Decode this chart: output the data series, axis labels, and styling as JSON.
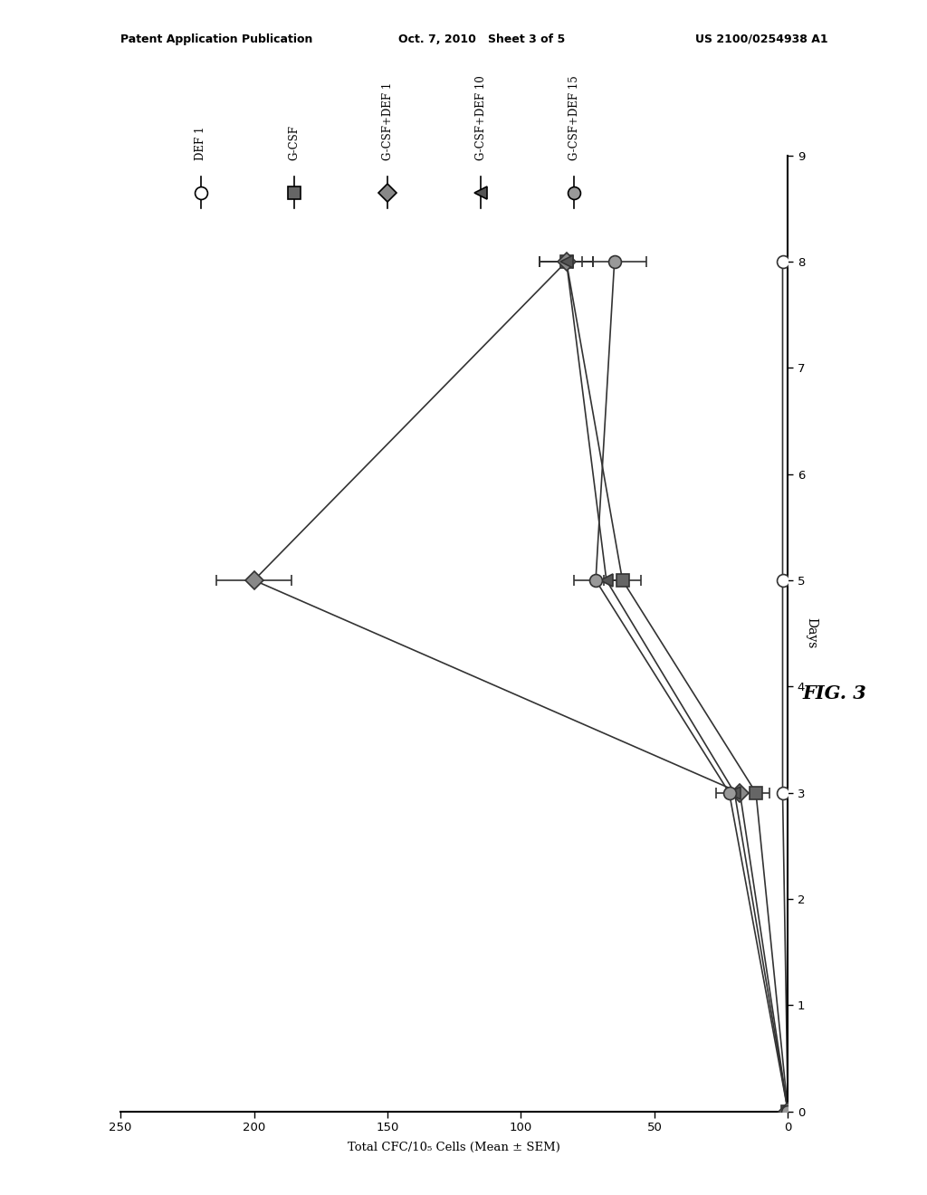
{
  "patent_header_left": "Patent Application Publication",
  "patent_header_mid": "Oct. 7, 2010   Sheet 3 of 5",
  "patent_header_right": "US 2100/0254938 A1",
  "fig_label": "FIG. 3",
  "ylabel_text": "Total CFC/10₅ Cells (Mean ± SEM)",
  "xlabel_text": "Days",
  "cfc_ticks": [
    0,
    50,
    100,
    150,
    200,
    250
  ],
  "days_ticks": [
    0,
    1,
    2,
    3,
    4,
    5,
    6,
    7,
    8,
    9
  ],
  "cfc_lim": [
    0,
    250
  ],
  "days_lim": [
    0,
    9
  ],
  "series": [
    {
      "name": "DEF 1",
      "marker": "o",
      "mfc": "white",
      "mec": "#333333",
      "color": "#333333",
      "days": [
        0,
        3,
        5,
        8
      ],
      "cfc": [
        0,
        2,
        2,
        2
      ],
      "err": [
        0,
        0,
        0,
        0
      ],
      "ms": 10
    },
    {
      "name": "G-CSF",
      "marker": "s",
      "mfc": "#666666",
      "mec": "#333333",
      "color": "#333333",
      "days": [
        0,
        3,
        5,
        8
      ],
      "cfc": [
        0,
        12,
        62,
        83
      ],
      "err": [
        0,
        5,
        7,
        10
      ],
      "ms": 10
    },
    {
      "name": "G-CSF+DEF 1",
      "marker": "D",
      "mfc": "#888888",
      "mec": "#333333",
      "color": "#333333",
      "days": [
        0,
        3,
        5,
        8
      ],
      "cfc": [
        0,
        18,
        200,
        83
      ],
      "err": [
        0,
        4,
        14,
        10
      ],
      "ms": 10
    },
    {
      "name": "G-CSF+DEF 10",
      "marker": "<",
      "mfc": "#555555",
      "mec": "#333333",
      "color": "#333333",
      "days": [
        0,
        3,
        5,
        8
      ],
      "cfc": [
        0,
        20,
        68,
        83
      ],
      "err": [
        0,
        3,
        5,
        10
      ],
      "ms": 10
    },
    {
      "name": "G-CSF+DEF 15",
      "marker": "o",
      "mfc": "#999999",
      "mec": "#333333",
      "color": "#333333",
      "days": [
        0,
        3,
        5,
        8
      ],
      "cfc": [
        0,
        22,
        72,
        65
      ],
      "err": [
        0,
        5,
        8,
        12
      ],
      "ms": 10
    }
  ],
  "bg_color": "white",
  "legend_markers": [
    "o",
    "s",
    "D",
    "<",
    "o"
  ],
  "legend_mfc": [
    "white",
    "#666666",
    "#888888",
    "#555555",
    "#999999"
  ],
  "legend_names": [
    "DEF 1",
    "G-CSF",
    "G-CSF+DEF 1",
    "G-CSF+DEF 10",
    "G-CSF+DEF 15"
  ]
}
